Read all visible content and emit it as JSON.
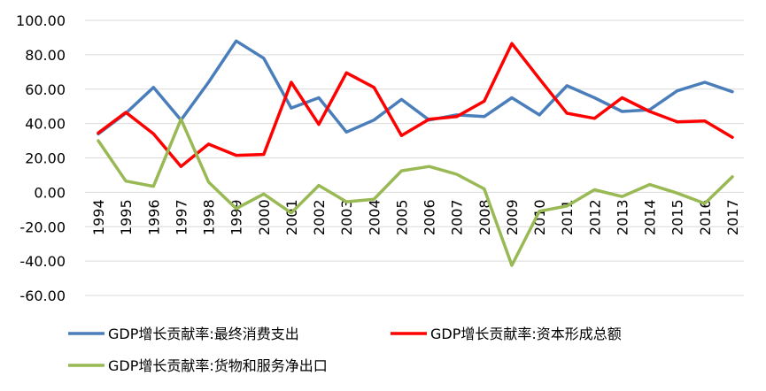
{
  "chart_data": {
    "type": "line",
    "title": "",
    "xlabel": "",
    "ylabel": "",
    "ylim": [
      -60,
      100
    ],
    "yticks": [
      -60,
      -40,
      -20,
      0,
      20,
      40,
      60,
      80,
      100
    ],
    "ytick_labels": [
      "-60.00",
      "-40.00",
      "-20.00",
      "0.00",
      "20.00",
      "40.00",
      "60.00",
      "80.00",
      "100.00"
    ],
    "grid": true,
    "legend_position": "bottom",
    "categories": [
      "1994",
      "1995",
      "1996",
      "1997",
      "1998",
      "1999",
      "2000",
      "2001",
      "2002",
      "2003",
      "2004",
      "2005",
      "2006",
      "2007",
      "2008",
      "2009",
      "2010",
      "2011",
      "2012",
      "2013",
      "2014",
      "2015",
      "2016",
      "2017"
    ],
    "series": [
      {
        "name": "GDP增长贡献率:最终消费支出",
        "color": "#4a7ebb",
        "values": [
          34,
          46,
          61,
          42,
          64,
          88,
          78,
          49,
          55,
          35,
          42,
          54,
          42,
          45,
          44,
          55,
          45,
          62,
          55,
          47,
          48,
          59,
          64,
          58.5
        ]
      },
      {
        "name": "GDP增长贡献率:资本形成总额",
        "color": "#ff0000",
        "values": [
          34.5,
          46.5,
          34,
          15,
          28,
          21.5,
          22,
          64,
          39.5,
          69.5,
          61,
          33,
          42.5,
          44,
          53,
          86.5,
          66,
          46,
          43,
          55,
          47,
          41,
          41.5,
          32
        ]
      },
      {
        "name": "GDP增长贡献率:货物和服务净出口",
        "color": "#98b954",
        "values": [
          30,
          6.5,
          3.5,
          42.5,
          6,
          -9.5,
          -1,
          -12,
          4,
          -5.5,
          -4,
          12.5,
          15,
          10.5,
          2,
          -42.5,
          -11,
          -8,
          1.5,
          -2.5,
          4.5,
          -0.5,
          -6.5,
          9
        ]
      }
    ]
  }
}
